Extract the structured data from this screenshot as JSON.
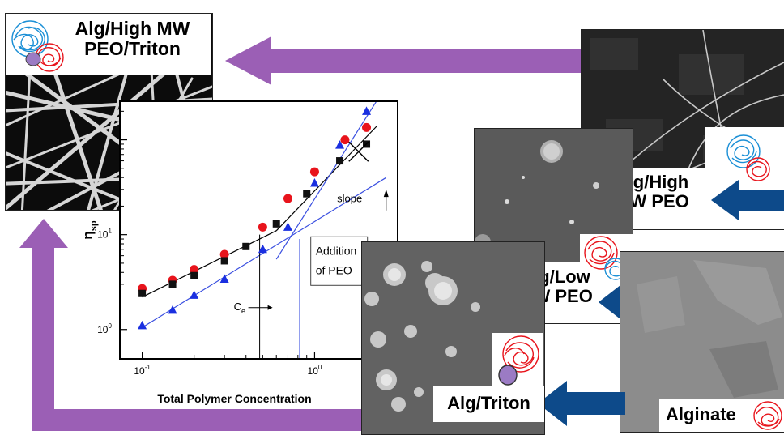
{
  "colors": {
    "purple_arrow": "#9b5fb5",
    "navy_arrow": "#0d4a8a",
    "red_marker": "#e8141c",
    "blue_marker": "#1a2fe0",
    "black_marker": "#111111",
    "blue_fit": "#3a4fe0",
    "blue_coil": "#1a8fd6",
    "red_coil": "#e8141c",
    "triton_fill": "#9b7bc4"
  },
  "panels": {
    "top_left": {
      "label_line1": "Alg/High MW",
      "label_line2": "PEO/Triton"
    },
    "high_mw": {
      "label_line1": "Alg/High",
      "label_line2": "MW PEO"
    },
    "low_mw": {
      "label_line1": "Alg/Low",
      "label_line2": "MW PEO"
    },
    "triton": {
      "label": "Alg/Triton"
    },
    "alginate": {
      "label": "Alginate"
    }
  },
  "chart_data": {
    "type": "scatter",
    "x_scale": "log",
    "y_scale": "log",
    "xlabel": "Total Polymer Concentration",
    "ylabel": "η",
    "ylabel_subscript": "sp",
    "xlim": [
      0.075,
      3
    ],
    "ylim": [
      0.5,
      250
    ],
    "x_tick_labels": [
      {
        "value": 0.1,
        "base": "10",
        "exp": "-1"
      },
      {
        "value": 1,
        "base": "10",
        "exp": "0"
      }
    ],
    "y_tick_labels": [
      {
        "value": 1,
        "base": "10",
        "exp": "0"
      },
      {
        "value": 10,
        "base": "10",
        "exp": "1"
      }
    ],
    "series": [
      {
        "marker": "circle",
        "color": "#e8141c",
        "x": [
          0.1,
          0.15,
          0.2,
          0.3,
          0.5,
          0.7,
          1.0,
          1.5,
          2.0
        ],
        "y": [
          2.7,
          3.3,
          4.3,
          6.2,
          12.0,
          24.0,
          46.0,
          100.0,
          135.0
        ]
      },
      {
        "marker": "square",
        "color": "#111111",
        "x": [
          0.1,
          0.15,
          0.2,
          0.3,
          0.4,
          0.6,
          0.9,
          1.4,
          2.0
        ],
        "y": [
          2.4,
          3.0,
          3.7,
          5.3,
          7.5,
          13.0,
          27.0,
          60.0,
          90.0
        ]
      },
      {
        "marker": "triangle",
        "color": "#1a2fe0",
        "x": [
          0.1,
          0.15,
          0.2,
          0.3,
          0.5,
          0.7,
          1.0,
          1.4,
          2.0
        ],
        "y": [
          1.1,
          1.6,
          2.3,
          3.4,
          7.0,
          12.0,
          35.0,
          88.0,
          200.0
        ]
      }
    ],
    "ce_x": 0.48,
    "ce_label": "C",
    "ce_subscript": "e",
    "slope_label": "slope",
    "annotation_line1": "Addition",
    "annotation_line2": "of PEO"
  }
}
